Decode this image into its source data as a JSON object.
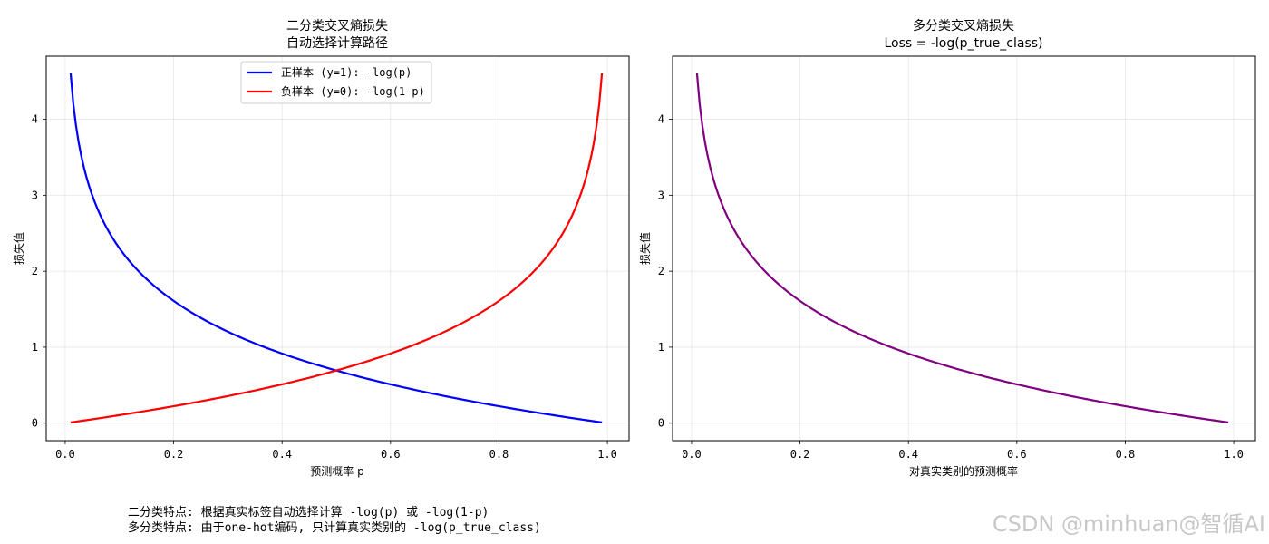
{
  "chart_data": [
    {
      "type": "line",
      "title": "二分类交叉熵损失",
      "subtitle": "自动选择计算路径",
      "xlabel": "预测概率 p",
      "ylabel": "损失值",
      "xlim": [
        -0.035,
        1.04
      ],
      "ylim": [
        -0.23,
        4.83
      ],
      "xticks": [
        0.0,
        0.2,
        0.4,
        0.6,
        0.8,
        1.0
      ],
      "xtick_labels": [
        "0.0",
        "0.2",
        "0.4",
        "0.6",
        "0.8",
        "1.0"
      ],
      "yticks": [
        0,
        1,
        2,
        3,
        4
      ],
      "ytick_labels": [
        "0",
        "1",
        "2",
        "3",
        "4"
      ],
      "grid": true,
      "legend_position": "upper center",
      "series": [
        {
          "name": "正样本 (y=1): -log(p)",
          "color": "#0000ff",
          "function": "-log(p)",
          "x": [
            0.01,
            0.02,
            0.03,
            0.05,
            0.08,
            0.1,
            0.15,
            0.2,
            0.3,
            0.4,
            0.5,
            0.6,
            0.7,
            0.8,
            0.9,
            0.99
          ],
          "y": [
            4.61,
            3.91,
            3.51,
            3.0,
            2.53,
            2.3,
            1.9,
            1.61,
            1.2,
            0.92,
            0.69,
            0.51,
            0.36,
            0.22,
            0.11,
            0.01
          ]
        },
        {
          "name": "负样本 (y=0): -log(1-p)",
          "color": "#ff0000",
          "function": "-log(1-p)",
          "x": [
            0.01,
            0.1,
            0.2,
            0.3,
            0.4,
            0.5,
            0.6,
            0.7,
            0.8,
            0.85,
            0.9,
            0.92,
            0.95,
            0.97,
            0.98,
            0.99
          ],
          "y": [
            0.01,
            0.11,
            0.22,
            0.36,
            0.51,
            0.69,
            0.92,
            1.2,
            1.61,
            1.9,
            2.3,
            2.53,
            3.0,
            3.51,
            3.91,
            4.61
          ]
        }
      ]
    },
    {
      "type": "line",
      "title": "多分类交叉熵损失",
      "subtitle": "Loss = -log(p_true_class)",
      "xlabel": "对真实类别的预测概率",
      "ylabel": "损失值",
      "xlim": [
        -0.035,
        1.04
      ],
      "ylim": [
        -0.23,
        4.83
      ],
      "xticks": [
        0.0,
        0.2,
        0.4,
        0.6,
        0.8,
        1.0
      ],
      "xtick_labels": [
        "0.0",
        "0.2",
        "0.4",
        "0.6",
        "0.8",
        "1.0"
      ],
      "yticks": [
        0,
        1,
        2,
        3,
        4
      ],
      "ytick_labels": [
        "0",
        "1",
        "2",
        "3",
        "4"
      ],
      "grid": true,
      "series": [
        {
          "color": "#800080",
          "function": "-log(p)",
          "x": [
            0.01,
            0.02,
            0.03,
            0.05,
            0.08,
            0.1,
            0.15,
            0.2,
            0.3,
            0.4,
            0.5,
            0.6,
            0.7,
            0.8,
            0.9,
            0.99
          ],
          "y": [
            4.61,
            3.91,
            3.51,
            3.0,
            2.53,
            2.3,
            1.9,
            1.61,
            1.2,
            0.92,
            0.69,
            0.51,
            0.36,
            0.22,
            0.11,
            0.01
          ]
        }
      ]
    }
  ],
  "notes": {
    "line1": "二分类特点: 根据真实标签自动选择计算 -log(p) 或 -log(1-p)",
    "line2": "多分类特点: 由于one-hot编码, 只计算真实类别的 -log(p_true_class)"
  },
  "watermark": "CSDN @minhuan@智循AI"
}
